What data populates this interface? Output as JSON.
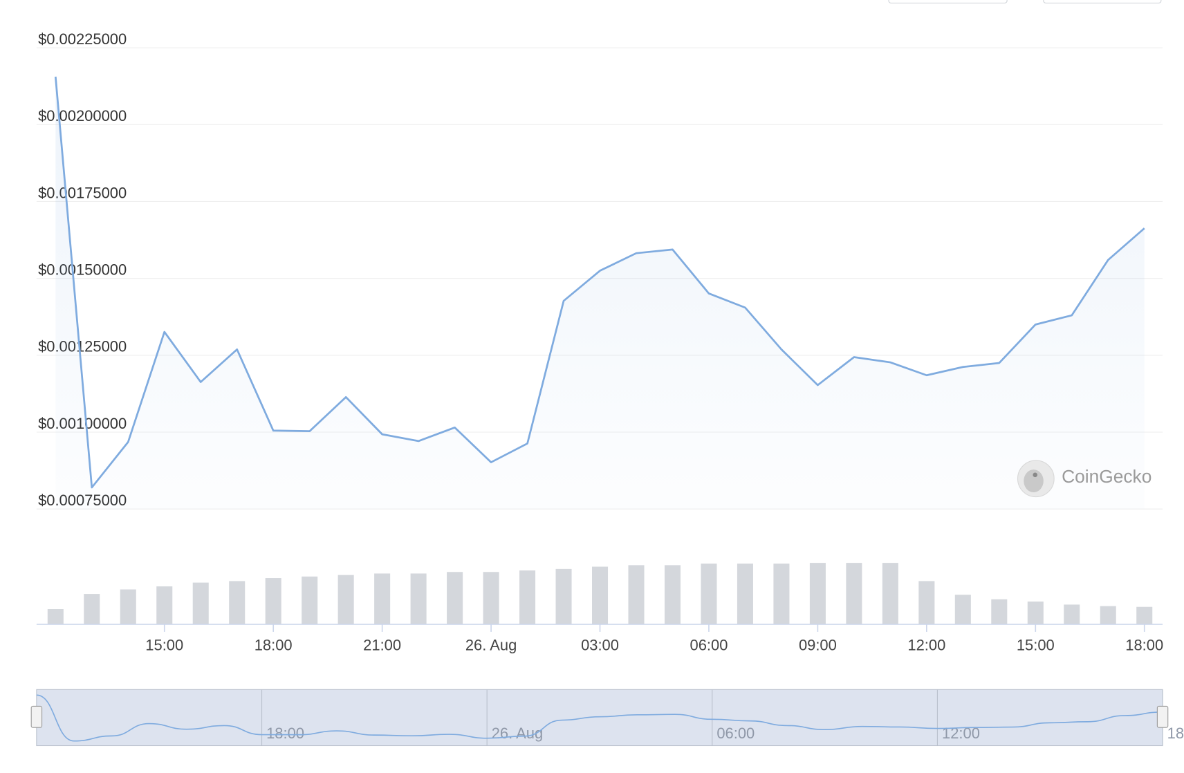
{
  "chart_data": {
    "type": "line",
    "categories": [
      null,
      null,
      null,
      "15:00",
      null,
      null,
      "18:00",
      null,
      null,
      "21:00",
      null,
      null,
      "26. Aug",
      null,
      null,
      "03:00",
      null,
      null,
      "06:00",
      null,
      null,
      "09:00",
      null,
      null,
      "12:00",
      null,
      null,
      "15:00",
      null,
      null,
      "18:00"
    ],
    "series": [
      {
        "type": "line",
        "color": "#7fabdf",
        "values": [
          0.002156,
          0.00082,
          0.000968,
          0.001326,
          0.001163,
          0.001269,
          0.001005,
          0.001003,
          0.001114,
          0.000993,
          0.000971,
          0.001015,
          0.000902,
          0.000963,
          0.001427,
          0.001525,
          0.001582,
          0.001594,
          0.001451,
          0.001405,
          0.001269,
          0.001153,
          0.001244,
          0.001227,
          0.001185,
          0.001212,
          0.001225,
          0.00135,
          0.00138,
          0.00156,
          0.001663
        ]
      },
      {
        "type": "bar",
        "color": "#d4d7dc",
        "axis": "y2",
        "values": [
          20,
          40,
          46,
          50,
          55,
          57,
          61,
          63,
          65,
          67,
          67,
          69,
          69,
          71,
          73,
          76,
          78,
          78,
          80,
          80,
          80,
          81,
          81,
          81,
          57,
          39,
          33,
          30,
          26,
          24,
          23
        ]
      }
    ],
    "ylim": [
      0.00075,
      0.00225
    ],
    "yticks": [
      {
        "value": 0.00225,
        "label": "$0.00225000"
      },
      {
        "value": 0.002,
        "label": "$0.00200000"
      },
      {
        "value": 0.00175,
        "label": "$0.00175000"
      },
      {
        "value": 0.0015,
        "label": "$0.00150000"
      },
      {
        "value": 0.00125,
        "label": "$0.00125000"
      },
      {
        "value": 0.001,
        "label": "$0.00100000"
      },
      {
        "value": 0.00075,
        "label": "$0.00075000"
      }
    ],
    "y2lim": [
      0,
      100
    ],
    "grid": true,
    "watermark": "CoinGecko"
  }
}
